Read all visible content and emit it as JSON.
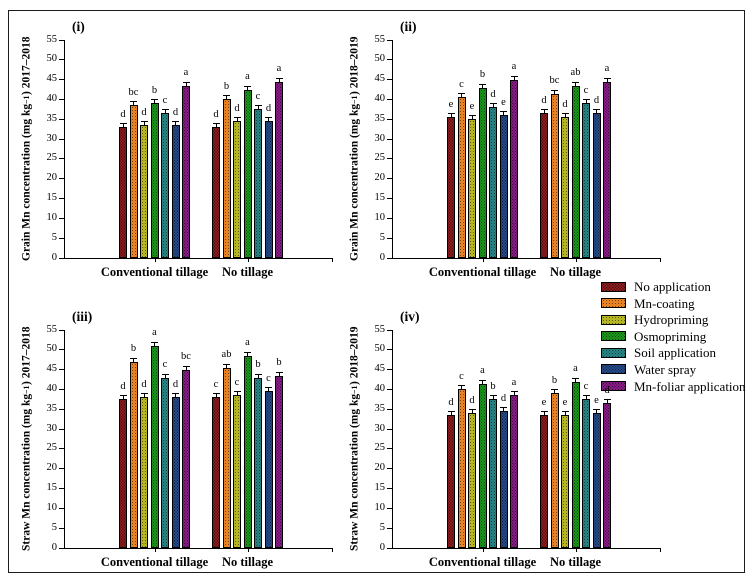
{
  "legend": {
    "items": [
      {
        "label": "No application",
        "color": "#7B1113"
      },
      {
        "label": "Mn-coating",
        "color": "#E67E1E"
      },
      {
        "label": "Hydropriming",
        "color": "#B3B31C"
      },
      {
        "label": "Osmopriming",
        "color": "#118A11"
      },
      {
        "label": "Soil application",
        "color": "#1E7C7C"
      },
      {
        "label": "Water spray",
        "color": "#1A3F7C"
      },
      {
        "label": "Mn-foliar application",
        "color": "#7A127A"
      }
    ]
  },
  "chart_data": [
    {
      "type": "bar",
      "panel_label": "(i)",
      "ylabel_pre": "Grain Mn concentration (mg kg",
      "ylabel_sup": "−1",
      "ylabel_post": ") 2017–2018",
      "ylim": [
        0,
        55
      ],
      "ytick_step": 5,
      "grid": false,
      "categories": [
        "Conventional tillage",
        "No tillage"
      ],
      "yerr": 0.5,
      "series": [
        {
          "name": "No application",
          "values": [
            33.0,
            33.0
          ],
          "letters": [
            "d",
            "d"
          ]
        },
        {
          "name": "Mn-coating",
          "values": [
            38.5,
            40.0
          ],
          "letters": [
            "bc",
            "b"
          ]
        },
        {
          "name": "Hydropriming",
          "values": [
            33.5,
            34.5
          ],
          "letters": [
            "d",
            "d"
          ]
        },
        {
          "name": "Osmopriming",
          "values": [
            39.0,
            42.5
          ],
          "letters": [
            "b",
            "a"
          ]
        },
        {
          "name": "Soil application",
          "values": [
            36.5,
            37.5
          ],
          "letters": [
            "c",
            "c"
          ]
        },
        {
          "name": "Water spray",
          "values": [
            33.5,
            34.5
          ],
          "letters": [
            "d",
            "d"
          ]
        },
        {
          "name": "Mn-foliar application",
          "values": [
            43.5,
            44.5
          ],
          "letters": [
            "a",
            "a"
          ]
        }
      ]
    },
    {
      "type": "bar",
      "panel_label": "(ii)",
      "ylabel_pre": "Grain Mn concentration (mg kg",
      "ylabel_sup": "−1",
      "ylabel_post": ") 2018–2019",
      "ylim": [
        0,
        55
      ],
      "ytick_step": 5,
      "grid": false,
      "categories": [
        "Conventional tillage",
        "No tillage"
      ],
      "yerr": 0.5,
      "series": [
        {
          "name": "No application",
          "values": [
            35.5,
            36.5
          ],
          "letters": [
            "e",
            "d"
          ]
        },
        {
          "name": "Mn-coating",
          "values": [
            40.5,
            41.5
          ],
          "letters": [
            "c",
            "bc"
          ]
        },
        {
          "name": "Hydropriming",
          "values": [
            35.0,
            35.5
          ],
          "letters": [
            "e",
            "d"
          ]
        },
        {
          "name": "Osmopriming",
          "values": [
            43.0,
            43.5
          ],
          "letters": [
            "b",
            "ab"
          ]
        },
        {
          "name": "Soil application",
          "values": [
            38.0,
            39.0
          ],
          "letters": [
            "d",
            "c"
          ]
        },
        {
          "name": "Water spray",
          "values": [
            36.0,
            36.5
          ],
          "letters": [
            "e",
            "d"
          ]
        },
        {
          "name": "Mn-foliar application",
          "values": [
            45.0,
            44.5
          ],
          "letters": [
            "a",
            "a"
          ]
        }
      ]
    },
    {
      "type": "bar",
      "panel_label": "(iii)",
      "ylabel_pre": "Straw Mn concentration (mg kg",
      "ylabel_sup": "−1",
      "ylabel_post": ") 2017–2018",
      "ylim": [
        0,
        55
      ],
      "ytick_step": 5,
      "grid": false,
      "categories": [
        "Conventional tillage",
        "No tillage"
      ],
      "yerr": 0.5,
      "series": [
        {
          "name": "No application",
          "values": [
            37.5,
            38.0
          ],
          "letters": [
            "d",
            "c"
          ]
        },
        {
          "name": "Mn-coating",
          "values": [
            47.0,
            45.5
          ],
          "letters": [
            "b",
            "ab"
          ]
        },
        {
          "name": "Hydropriming",
          "values": [
            38.0,
            38.5
          ],
          "letters": [
            "d",
            "c"
          ]
        },
        {
          "name": "Osmopriming",
          "values": [
            51.0,
            48.5
          ],
          "letters": [
            "a",
            "a"
          ]
        },
        {
          "name": "Soil application",
          "values": [
            43.0,
            43.0
          ],
          "letters": [
            "c",
            "b"
          ]
        },
        {
          "name": "Water spray",
          "values": [
            38.0,
            39.5
          ],
          "letters": [
            "d",
            "c"
          ]
        },
        {
          "name": "Mn-foliar application",
          "values": [
            45.0,
            43.5
          ],
          "letters": [
            "bc",
            "b"
          ]
        }
      ]
    },
    {
      "type": "bar",
      "panel_label": "(iv)",
      "ylabel_pre": "Straw Mn concentration (mg kg",
      "ylabel_sup": "−1",
      "ylabel_post": ") 2018–2019",
      "ylim": [
        0,
        55
      ],
      "ytick_step": 5,
      "grid": false,
      "categories": [
        "Conventional tillage",
        "No tillage"
      ],
      "yerr": 0.5,
      "series": [
        {
          "name": "No application",
          "values": [
            33.5,
            33.5
          ],
          "letters": [
            "d",
            "e"
          ]
        },
        {
          "name": "Mn-coating",
          "values": [
            40.0,
            39.0
          ],
          "letters": [
            "c",
            "b"
          ]
        },
        {
          "name": "Hydropriming",
          "values": [
            34.0,
            33.5
          ],
          "letters": [
            "d",
            "e"
          ]
        },
        {
          "name": "Osmopriming",
          "values": [
            41.5,
            42.0
          ],
          "letters": [
            "a",
            "a"
          ]
        },
        {
          "name": "Soil application",
          "values": [
            37.5,
            37.5
          ],
          "letters": [
            "b",
            "c"
          ]
        },
        {
          "name": "Water spray",
          "values": [
            34.5,
            34.0
          ],
          "letters": [
            "d",
            "e"
          ]
        },
        {
          "name": "Mn-foliar application",
          "values": [
            38.5,
            36.5
          ],
          "letters": [
            "a",
            "d"
          ]
        }
      ]
    }
  ]
}
